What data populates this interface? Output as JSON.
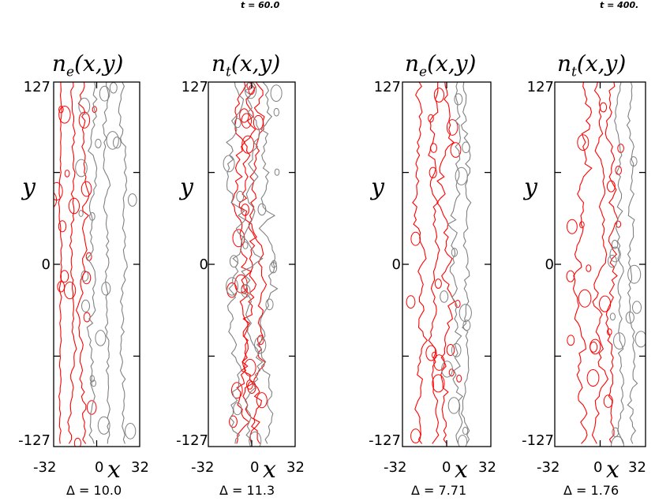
{
  "time_labels": [
    "t = 60.0",
    "t = 400."
  ],
  "chart_data": [
    {
      "type": "contour",
      "title": "n_e(x,y)",
      "title_base": "n",
      "title_sub": "e",
      "title_tail": "(x,y)",
      "xlabel": "x",
      "ylabel": "y",
      "xlim": [
        -32,
        32
      ],
      "ylim": [
        -127,
        127
      ],
      "x_ticks": [
        "-32",
        "0",
        "32"
      ],
      "y_ticks": [
        "127",
        "0",
        "-127"
      ],
      "delta_label": "Δ = 10.0",
      "time": "t = 60.0",
      "series": [
        {
          "color": "#ff0000",
          "centers": [
            -27,
            -18,
            -10
          ],
          "wiggle": [
            3,
            5,
            7
          ]
        },
        {
          "color": "#808080",
          "centers": [
            -3,
            8,
            20
          ],
          "wiggle": [
            7,
            7,
            6
          ]
        }
      ]
    },
    {
      "type": "contour",
      "title": "n_t(x,y)",
      "title_base": "n",
      "title_sub": "t",
      "title_tail": "(x,y)",
      "xlabel": "x",
      "ylabel": "y",
      "xlim": [
        -32,
        32
      ],
      "ylim": [
        -127,
        127
      ],
      "x_ticks": [
        "-32",
        "0",
        "32"
      ],
      "y_ticks": [
        "127",
        "0",
        "-127"
      ],
      "delta_label": "Δ = 11.3",
      "time": "t = 60.0",
      "series": [
        {
          "color": "#ff0000",
          "centers": [
            -8,
            -2,
            4
          ],
          "wiggle": [
            12,
            13,
            12
          ]
        },
        {
          "color": "#808080",
          "centers": [
            -12,
            0,
            10
          ],
          "wiggle": [
            13,
            14,
            12
          ]
        }
      ]
    },
    {
      "type": "contour",
      "title": "n_e(x,y)",
      "title_base": "n",
      "title_sub": "e",
      "title_tail": "(x,y)",
      "xlabel": "x",
      "ylabel": "y",
      "xlim": [
        -32,
        32
      ],
      "ylim": [
        -127,
        127
      ],
      "x_ticks": [
        "-32",
        "0",
        "32"
      ],
      "y_ticks": [
        "127",
        "0",
        "-127"
      ],
      "delta_label": "Δ = 7.71",
      "time": "t = 400.",
      "series": [
        {
          "color": "#ff0000",
          "centers": [
            -20,
            -8,
            0
          ],
          "wiggle": [
            8,
            9,
            9
          ]
        },
        {
          "color": "#808080",
          "centers": [
            6,
            14
          ],
          "wiggle": [
            9,
            8
          ]
        }
      ]
    },
    {
      "type": "contour",
      "title": "n_t(x,y)",
      "title_base": "n",
      "title_sub": "t",
      "title_tail": "(x,y)",
      "xlabel": "x",
      "ylabel": "y",
      "xlim": [
        -32,
        32
      ],
      "ylim": [
        -127,
        127
      ],
      "x_ticks": [
        "-32",
        "0",
        "32"
      ],
      "y_ticks": [
        "127",
        "0",
        "-127"
      ],
      "delta_label": "Δ = 1.76",
      "time": "t = 400.",
      "series": [
        {
          "color": "#ff0000",
          "centers": [
            -12,
            0,
            8
          ],
          "wiggle": [
            10,
            9,
            8
          ]
        },
        {
          "color": "#808080",
          "centers": [
            14,
            22
          ],
          "wiggle": [
            7,
            6
          ]
        }
      ]
    }
  ]
}
